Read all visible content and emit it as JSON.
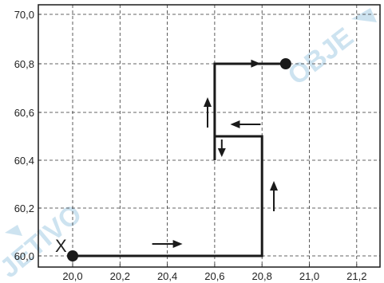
{
  "colors": {
    "grid": "#333333",
    "path": "#1a1a1a",
    "watermark": "#cde3f0"
  },
  "chart_data": {
    "type": "line",
    "xlim": [
      19.95,
      21.25
    ],
    "ylim": [
      60.0,
      71.0
    ],
    "x_ticks": [
      "20,0",
      "20,2",
      "20,4",
      "20,6",
      "20,8",
      "21,0",
      "21,2"
    ],
    "y_ticks": [
      "60,0",
      "60,2",
      "60,4",
      "60,6",
      "60,8",
      "70,0"
    ],
    "grid": "dashed",
    "series": [
      {
        "values_xy": [
          [
            20.0,
            60.0
          ],
          [
            20.8,
            60.0
          ],
          [
            20.8,
            60.5
          ],
          [
            20.6,
            60.5
          ],
          [
            20.6,
            60.4
          ],
          [
            20.6,
            60.8
          ],
          [
            20.9,
            60.8
          ]
        ]
      }
    ],
    "markers": [
      {
        "x": 20.0,
        "y": 60.0,
        "shape": "filled-circle"
      },
      {
        "x": 20.9,
        "y": 60.8,
        "shape": "filled-circle"
      }
    ],
    "start_label": "X",
    "direction_arrows": [
      {
        "x": 20.4,
        "y": 60.05,
        "dir": "right"
      },
      {
        "x": 20.85,
        "y": 60.25,
        "dir": "up"
      },
      {
        "x": 20.73,
        "y": 60.55,
        "dir": "left"
      },
      {
        "x": 20.63,
        "y": 60.45,
        "dir": "down"
      },
      {
        "x": 20.57,
        "y": 60.6,
        "dir": "up"
      },
      {
        "x": 20.73,
        "y": 60.85,
        "dir": "right"
      }
    ],
    "watermark": "OBJETIVO"
  }
}
